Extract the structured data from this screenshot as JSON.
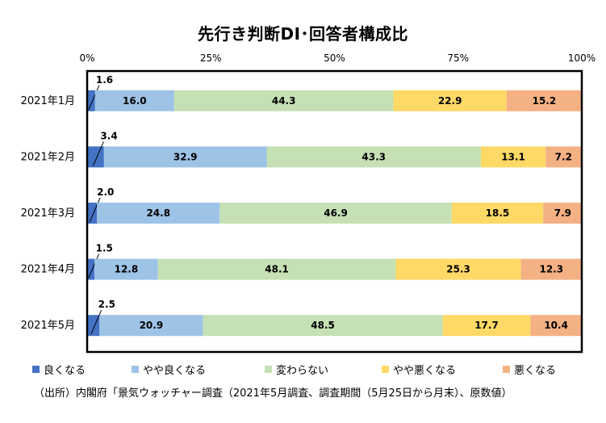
{
  "chart_data": {
    "type": "bar",
    "orientation": "horizontal-stacked-100",
    "title": "先行き判断DI･回答者構成比",
    "categories": [
      "2021年1月",
      "2021年2月",
      "2021年3月",
      "2021年4月",
      "2021年5月"
    ],
    "x_ticks": [
      "0%",
      "25%",
      "50%",
      "75%",
      "100%"
    ],
    "xlim": [
      0,
      100
    ],
    "grid": false,
    "legend_position": "bottom",
    "series": [
      {
        "name": "良くなる",
        "color": "#4472c4",
        "values": [
          1.6,
          3.4,
          2.0,
          1.5,
          2.5
        ]
      },
      {
        "name": "やや良くなる",
        "color": "#9dc3e6",
        "values": [
          16.0,
          32.9,
          24.8,
          12.8,
          20.9
        ]
      },
      {
        "name": "変わらない",
        "color": "#c5e0b4",
        "values": [
          44.3,
          43.3,
          46.9,
          48.1,
          48.5
        ]
      },
      {
        "name": "やや悪くなる",
        "color": "#ffd966",
        "values": [
          22.9,
          13.1,
          18.5,
          25.3,
          17.7
        ]
      },
      {
        "name": "悪くなる",
        "color": "#f4b183",
        "values": [
          15.2,
          7.2,
          7.9,
          12.3,
          10.4
        ]
      }
    ],
    "data_labels": [
      [
        "1.6",
        "16.0",
        "44.3",
        "22.9",
        "15.2"
      ],
      [
        "3.4",
        "32.9",
        "43.3",
        "13.1",
        "7.2"
      ],
      [
        "2.0",
        "24.8",
        "46.9",
        "18.5",
        "7.9"
      ],
      [
        "1.5",
        "12.8",
        "48.1",
        "25.3",
        "12.3"
      ],
      [
        "2.5",
        "20.9",
        "48.5",
        "17.7",
        "10.4"
      ]
    ]
  },
  "source_note": "（出所）内閣府「景気ウォッチャー調査（2021年5月調査、調査期間（5月25日から月末）、原数値）"
}
